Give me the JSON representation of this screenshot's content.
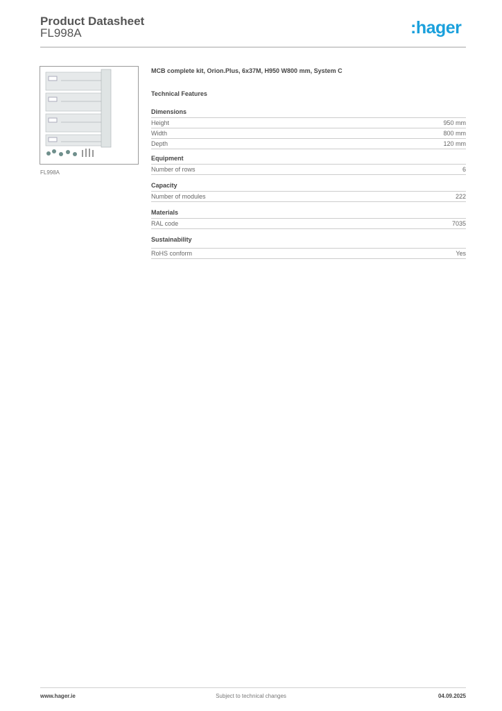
{
  "header": {
    "title": "Product Datasheet",
    "product_code": "FL998A",
    "logo_text": ":hager",
    "brand_color": "#1aa0dc"
  },
  "product": {
    "image_caption": "FL998A",
    "description": "MCB complete kit, Orion.Plus, 6x37M, H950 W800 mm, System C",
    "features_heading": "Technical Features"
  },
  "sections": [
    {
      "title": "Dimensions",
      "rows": [
        {
          "label": "Height",
          "value": "950 mm"
        },
        {
          "label": "Width",
          "value": "800 mm"
        },
        {
          "label": "Depth",
          "value": "120 mm"
        }
      ]
    },
    {
      "title": "Equipment",
      "rows": [
        {
          "label": "Number of rows",
          "value": "6"
        }
      ]
    },
    {
      "title": "Capacity",
      "rows": [
        {
          "label": "Number of modules",
          "value": "222"
        }
      ]
    },
    {
      "title": "Materials",
      "rows": [
        {
          "label": "RAL code",
          "value": "7035"
        }
      ]
    },
    {
      "title": "Sustainability",
      "rows": [
        {
          "label": "RoHS conform",
          "value": "Yes"
        }
      ]
    }
  ],
  "footer": {
    "website": "www.hager.ie",
    "notice": "Subject to technical changes",
    "date": "04.09.2025"
  }
}
